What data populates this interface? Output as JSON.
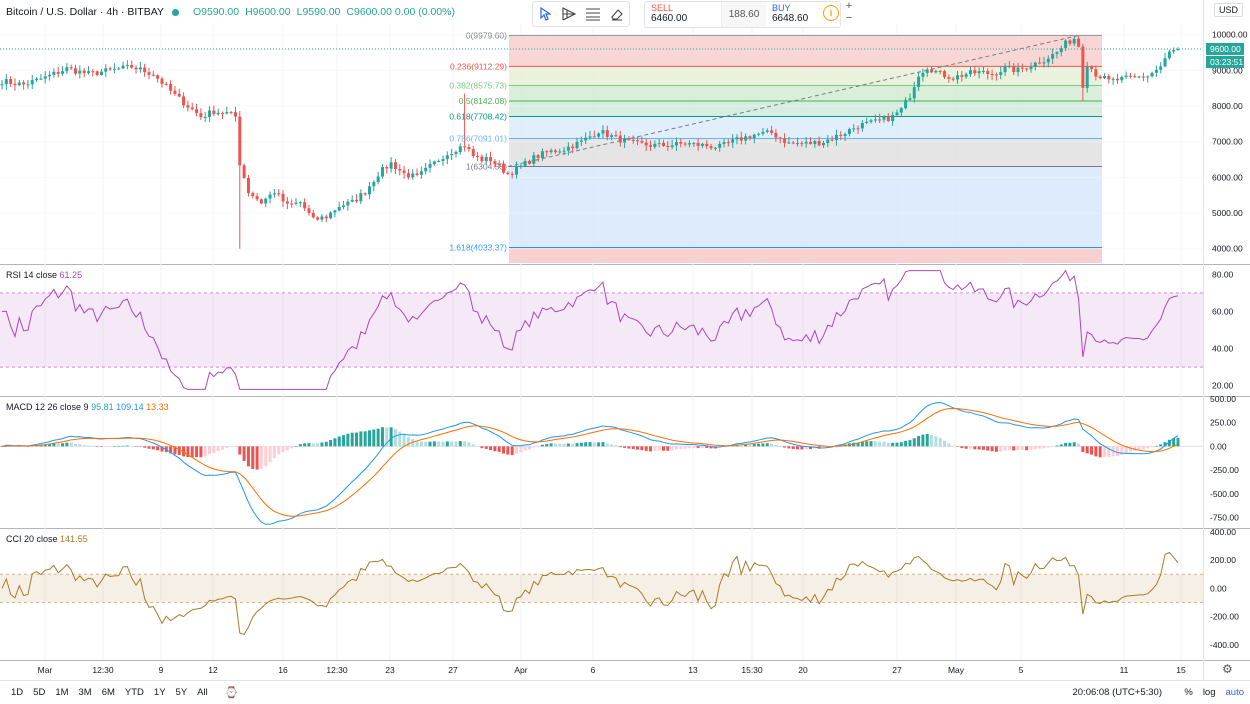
{
  "header": {
    "symbol": "Bitcoin / U.S. Dollar · 4h · BITBAY",
    "open": "O9590.00",
    "high": "H9600.00",
    "low": "L9590.00",
    "close": "C9600.00 0.00 (0.00%)"
  },
  "trade": {
    "sell_label": "SELL",
    "sell_price": "6460.00",
    "spread": "188.60",
    "buy_label": "BUY",
    "buy_price": "6648.60"
  },
  "currency": "USD",
  "icons": [
    "cursor-icon",
    "fib-tool-icon",
    "hlines-icon",
    "eraser-icon",
    "info-icon",
    "plus-icon",
    "minus-icon",
    "calendar-icon",
    "settings-icon"
  ],
  "colors": {
    "up": "#26a69a",
    "down": "#ef5350",
    "rsi": "#ab47bc",
    "macd": "#2196f3",
    "signal": "#ff6d00",
    "cci": "#a87b2a"
  },
  "bottom": {
    "ranges": [
      "1D",
      "5D",
      "1M",
      "3M",
      "6M",
      "YTD",
      "1Y",
      "5Y",
      "All"
    ],
    "clock": "20:06:08 (UTC+5:30)",
    "pct": "%",
    "log": "log",
    "auto": "auto"
  },
  "chart_data": [
    {
      "type": "candlestick",
      "title": "Bitcoin / U.S. Dollar, 4h, BITBAY",
      "ylim": [
        3600,
        10300
      ],
      "y_ticks": [
        "10000.00",
        "9000.00",
        "8000.00",
        "7000.00",
        "6000.00",
        "5000.00",
        "4000.00"
      ],
      "x_ticks": [
        "Mar",
        "12:30",
        "9",
        "12",
        "16",
        "12:30",
        "23",
        "27",
        "Apr",
        "6",
        "13",
        "15:30",
        "20",
        "27",
        "May",
        "5",
        "11",
        "15"
      ],
      "last_price": "9600.00",
      "countdown": "03:23:51",
      "anchor": [
        [
          0,
          8700
        ],
        [
          5,
          8600
        ],
        [
          10,
          8800
        ],
        [
          15,
          9050
        ],
        [
          20,
          8900
        ],
        [
          25,
          9000
        ],
        [
          30,
          9100
        ],
        [
          35,
          8900
        ],
        [
          40,
          8300
        ],
        [
          43,
          8000
        ],
        [
          46,
          7700
        ],
        [
          49,
          7850
        ],
        [
          52,
          7800
        ],
        [
          54,
          7700
        ],
        [
          55,
          6400
        ],
        [
          57,
          5600
        ],
        [
          60,
          5300
        ],
        [
          63,
          5600
        ],
        [
          66,
          5200
        ],
        [
          69,
          5300
        ],
        [
          72,
          4800
        ],
        [
          75,
          4900
        ],
        [
          78,
          5200
        ],
        [
          81,
          5300
        ],
        [
          84,
          5600
        ],
        [
          87,
          6100
        ],
        [
          90,
          6400
        ],
        [
          93,
          6100
        ],
        [
          96,
          6000
        ],
        [
          99,
          6300
        ],
        [
          102,
          6600
        ],
        [
          105,
          6800
        ],
        [
          107,
          6900
        ],
        [
          109,
          6600
        ],
        [
          111,
          6500
        ],
        [
          113,
          6500
        ],
        [
          115,
          6300
        ],
        [
          117,
          6100
        ],
        [
          120,
          6300
        ],
        [
          123,
          6550
        ],
        [
          126,
          6700
        ],
        [
          130,
          6800
        ],
        [
          134,
          7000
        ],
        [
          138,
          7300
        ],
        [
          142,
          7100
        ],
        [
          146,
          6950
        ],
        [
          150,
          6900
        ],
        [
          154,
          6900
        ],
        [
          158,
          6950
        ],
        [
          162,
          6900
        ],
        [
          166,
          6850
        ],
        [
          170,
          7050
        ],
        [
          174,
          7200
        ],
        [
          178,
          7250
        ],
        [
          182,
          6950
        ],
        [
          186,
          6950
        ],
        [
          190,
          7000
        ],
        [
          194,
          7200
        ],
        [
          198,
          7450
        ],
        [
          202,
          7550
        ],
        [
          206,
          7700
        ],
        [
          208,
          7900
        ],
        [
          210,
          8300
        ],
        [
          212,
          8900
        ],
        [
          214,
          9100
        ],
        [
          217,
          8900
        ],
        [
          220,
          8800
        ],
        [
          223,
          8900
        ],
        [
          226,
          8950
        ],
        [
          229,
          8900
        ],
        [
          232,
          9050
        ],
        [
          235,
          9000
        ],
        [
          238,
          9150
        ],
        [
          241,
          9300
        ],
        [
          244,
          9500
        ],
        [
          246,
          9750
        ],
        [
          248,
          9900
        ],
        [
          249,
          9700
        ],
        [
          250,
          8600
        ],
        [
          251,
          9200
        ],
        [
          253,
          8900
        ],
        [
          256,
          8700
        ],
        [
          259,
          8750
        ],
        [
          262,
          8800
        ],
        [
          265,
          8850
        ],
        [
          268,
          9100
        ],
        [
          270,
          9500
        ],
        [
          272,
          9600
        ]
      ],
      "fibonacci": [
        {
          "label": "0(9979.60)",
          "price": 9979.6
        },
        {
          "label": "0.236(9112.29)",
          "price": 9112.29
        },
        {
          "label": "0.382(8575.73)",
          "price": 8575.73
        },
        {
          "label": "0.5(8142.08)",
          "price": 8142.08
        },
        {
          "label": "0.618(7708.42)",
          "price": 7708.42
        },
        {
          "label": "0.786(7091.01)",
          "price": 7091.01
        },
        {
          "label": "1(6304.55)",
          "price": 6304.55
        },
        {
          "label": "1.618(4033.37)",
          "price": 4033.37
        }
      ]
    },
    {
      "type": "line",
      "title": "RSI 14 close",
      "value": "61.25",
      "ylim": [
        15,
        85
      ],
      "y_ticks": [
        "80.00",
        "60.00",
        "40.00",
        "20.00"
      ],
      "bands": [
        30,
        70
      ]
    },
    {
      "type": "line",
      "title": "MACD 12 26 close 9",
      "values": [
        "95.81",
        "109.14",
        "13.33"
      ],
      "ylim": [
        -850,
        520
      ],
      "y_ticks": [
        "500.00",
        "250.00",
        "0.00",
        "-250.00",
        "-500.00",
        "-750.00"
      ]
    },
    {
      "type": "line",
      "title": "CCI 20 close",
      "value": "141.55",
      "ylim": [
        -500,
        420
      ],
      "y_ticks": [
        "400.00",
        "200.00",
        "0.00",
        "-200.00",
        "-400.00"
      ],
      "bands": [
        -100,
        100
      ]
    }
  ]
}
